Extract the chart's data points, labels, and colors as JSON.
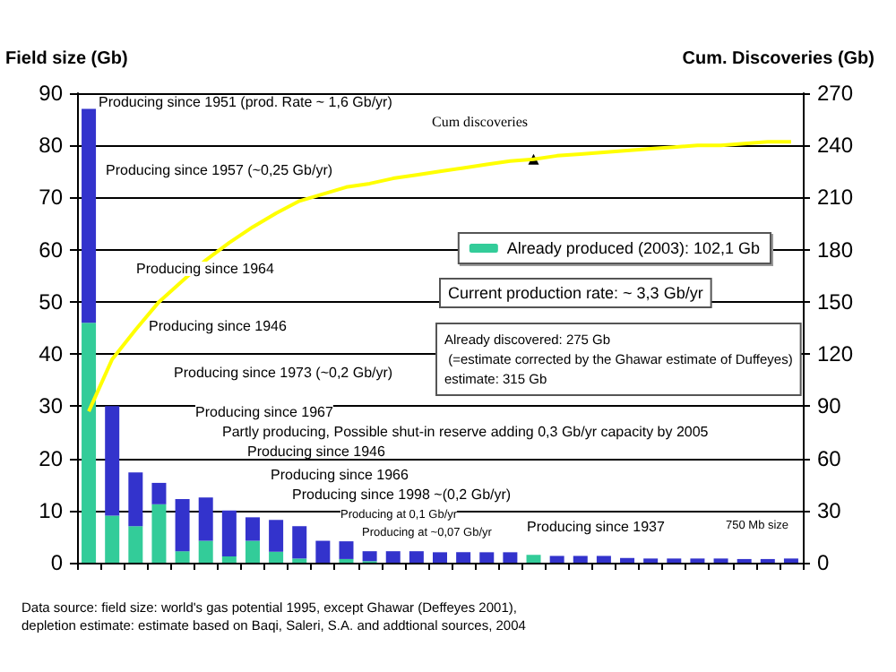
{
  "chart_data": {
    "type": "bar",
    "stacked": true,
    "ylabel": "Field size (Gb)",
    "y2label": "Cum. Discoveries (Gb)",
    "categories": [
      null,
      null,
      null,
      null,
      null,
      null,
      null,
      null,
      null,
      null,
      null,
      null,
      null,
      null,
      null,
      null,
      null,
      null,
      null,
      null,
      null,
      null,
      null,
      null,
      null,
      null,
      null,
      null,
      null,
      null,
      null
    ],
    "series": [
      {
        "name": "Already produced (2003): 102,1 Gb",
        "color": "#33cc99",
        "values": [
          46,
          9,
          7,
          11.2,
          2.2,
          4.2,
          1.2,
          4.2,
          2.1,
          0.8,
          0,
          0.7,
          0.3,
          0,
          0,
          0,
          0,
          0,
          0,
          1.5,
          0,
          0,
          0,
          0,
          0,
          0,
          0,
          0,
          0,
          0,
          0
        ]
      },
      {
        "color": "#3333cc",
        "values": [
          41,
          21,
          10.3,
          4.1,
          10,
          8.3,
          8.8,
          4.5,
          6.1,
          6.2,
          4.2,
          3.4,
          1.9,
          2.2,
          2.2,
          2,
          2,
          2,
          2,
          0,
          1.3,
          1.3,
          1.3,
          0.9,
          0.8,
          0.8,
          0.8,
          0.8,
          0.7,
          0.7,
          0.8
        ]
      },
      {
        "name": "Cum discoveries",
        "type": "line",
        "axis": "y2",
        "color": "#ffff00",
        "values": [
          87,
          117,
          134,
          150,
          162,
          174,
          184,
          193,
          201,
          208,
          212,
          216,
          218,
          221,
          223,
          225,
          227,
          229,
          231,
          232,
          234,
          235,
          236,
          237,
          238,
          239,
          240,
          240,
          241,
          242,
          242
        ]
      }
    ],
    "ylim": [
      0,
      90
    ],
    "yticks": [
      0,
      10,
      20,
      30,
      40,
      50,
      60,
      70,
      80,
      90
    ],
    "y2lim": [
      0,
      270
    ],
    "y2ticks": [
      0,
      30,
      60,
      90,
      120,
      150,
      180,
      210,
      240,
      270
    ],
    "grid": "y",
    "legend": "right",
    "marker": "none",
    "annotations": [
      "Producing since 1951 (prod. Rate ~ 1,6 Gb/yr)",
      "Producing since 1957 (~0,25 Gb/yr)",
      "Producing since 1964",
      "Producing since 1946",
      "Producing since 1973 (~0,2 Gb/yr)",
      "Producing since 1967",
      "Partly producing, Possible shut-in reserve adding 0,3 Gb/yr capacity by 2005",
      "Producing since 1946",
      "Producing since 1966",
      "Producing since 1998 ~(0,2 Gb/yr)",
      "Producing at 0,1 Gb/yr",
      "Producing at ~0,07 Gb/yr",
      "Producing since 1937",
      "750 Mb size",
      "Current production rate: ~ 3,3 Gb/yr",
      "Already discovered: 275 Gb\n (=estimate corrected by the Ghawar estimate of Duffeyes)\nestimate: 315 Gb",
      "Data source: field size: world's gas potential 1995, except Ghawar (Deffeyes 2001),\ndepletion estimate: estimate based on Baqi, Saleri, S.A. and addtional sources, 2004"
    ]
  }
}
